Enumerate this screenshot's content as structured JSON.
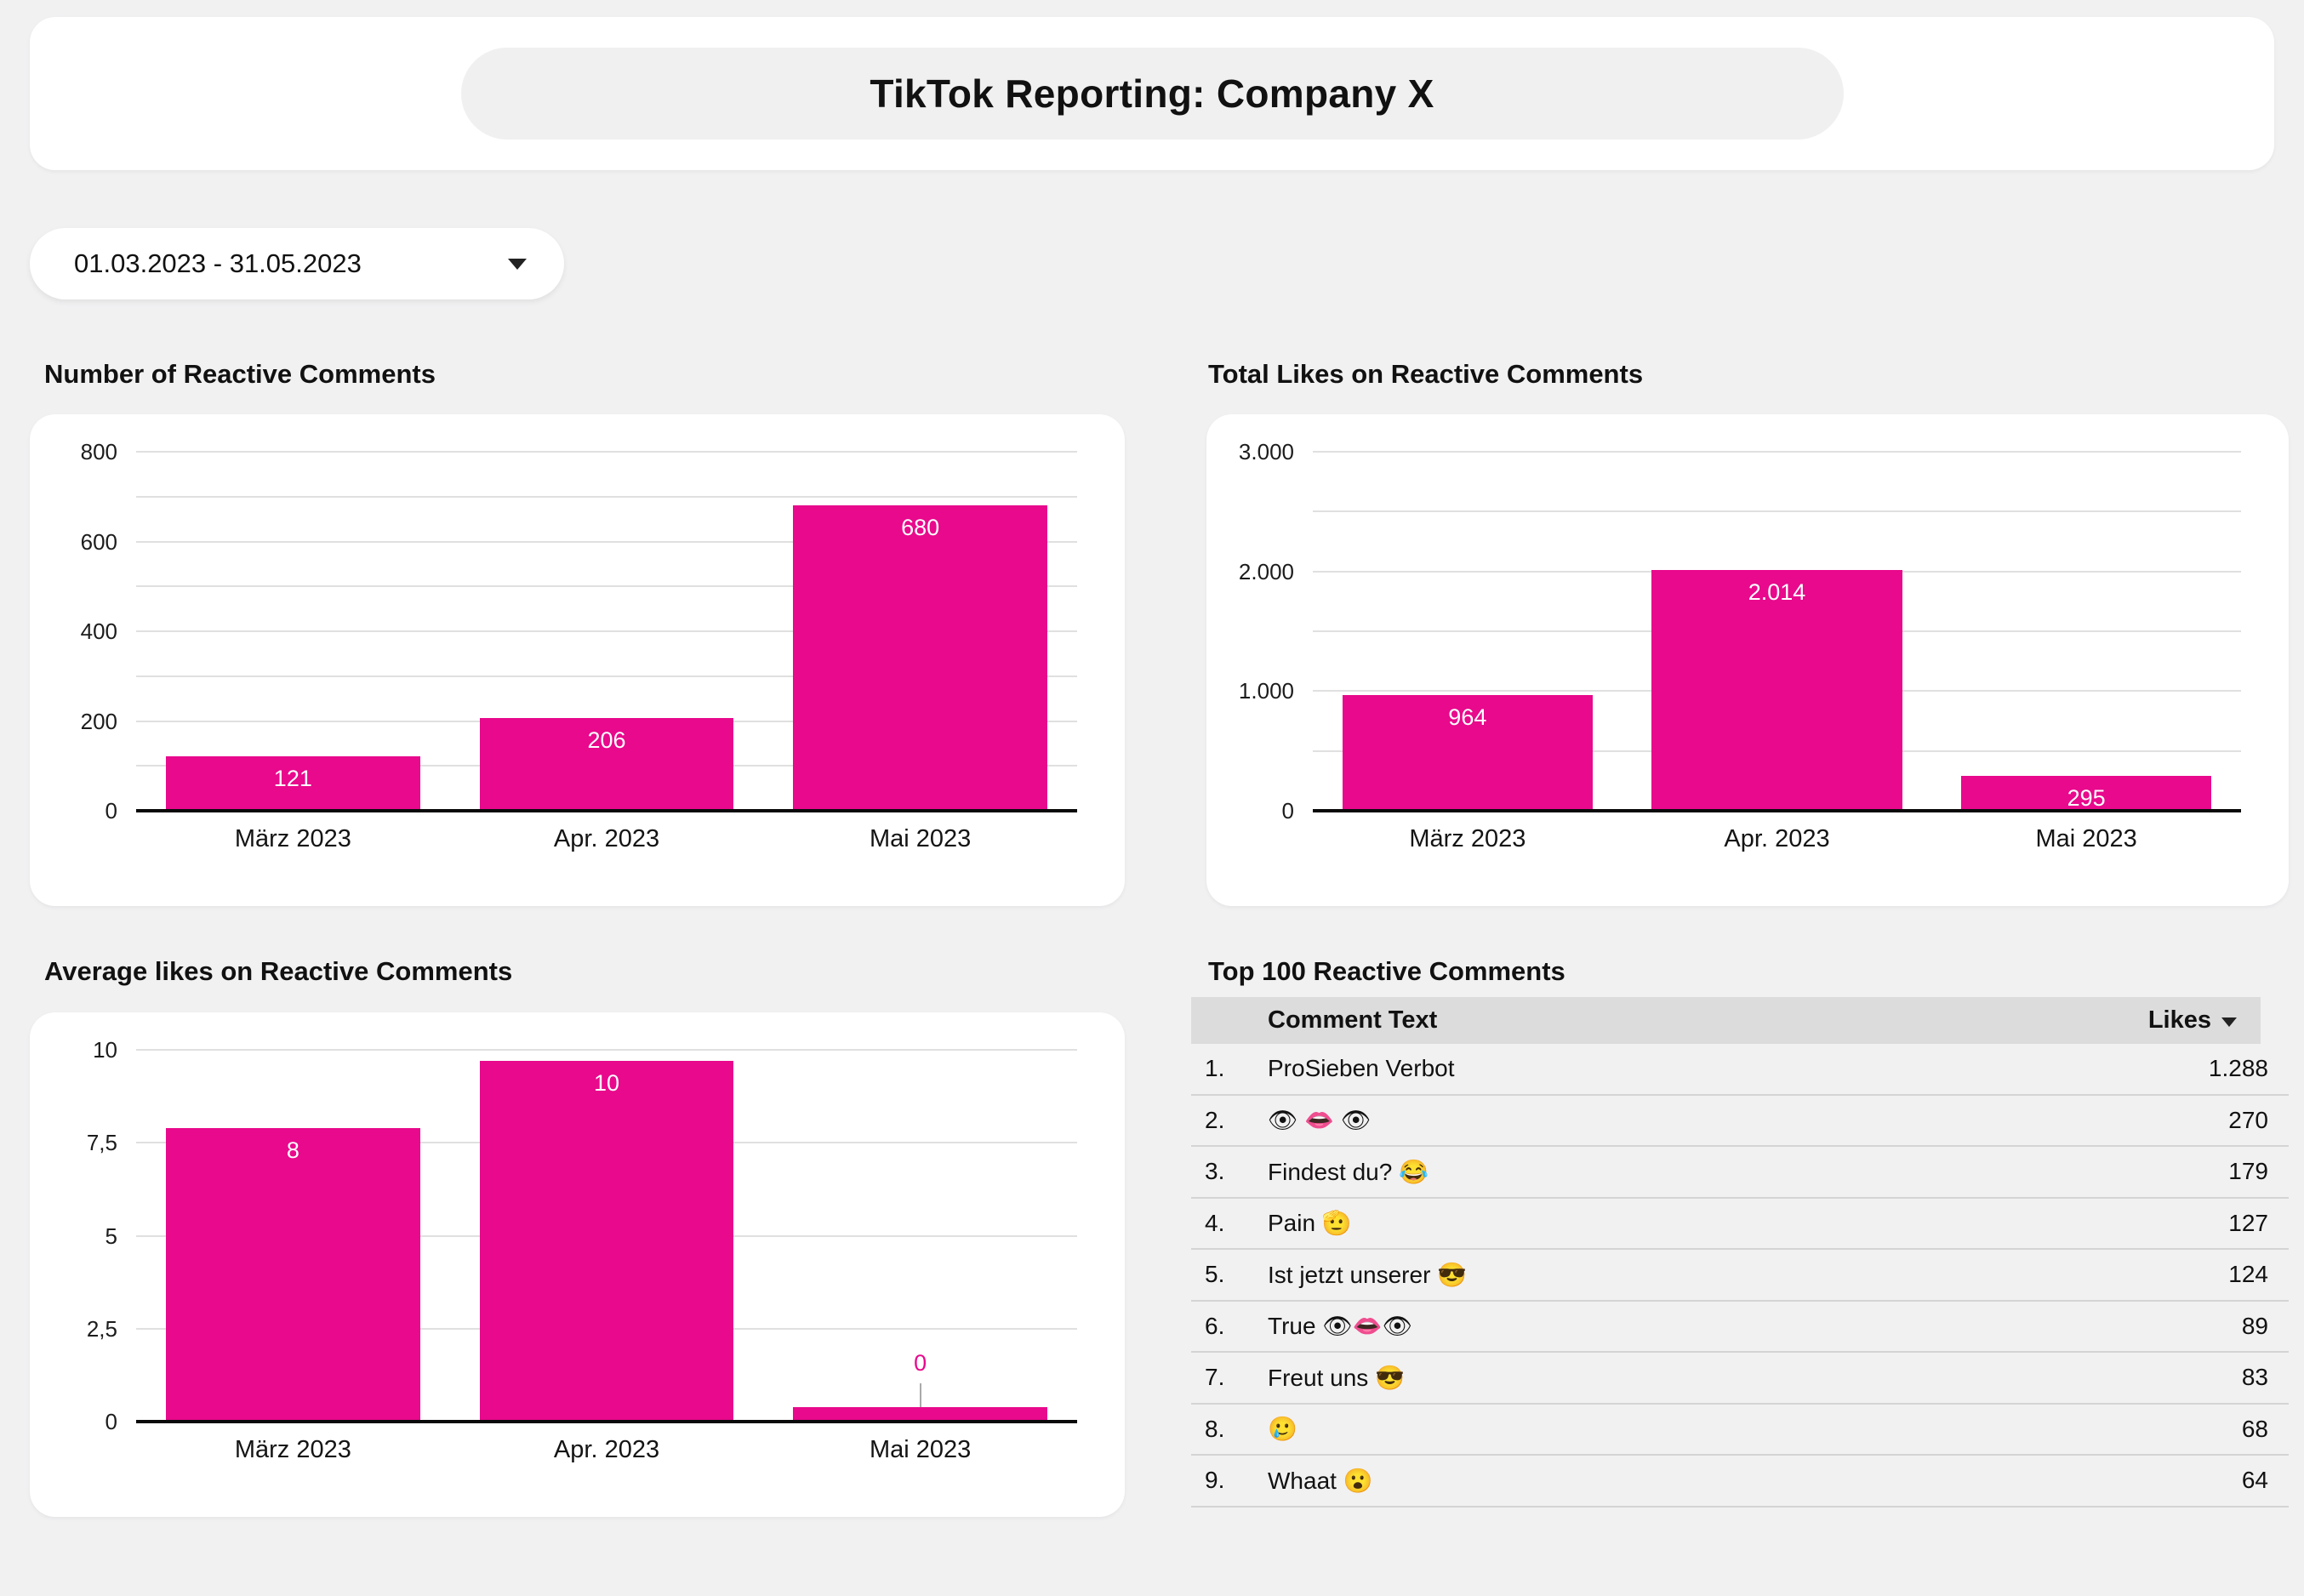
{
  "page": {
    "title": "TikTok Reporting: Company X",
    "date_range_label": "01.03.2023 - 31.05.2023"
  },
  "colors": {
    "accent_pink": "#E8098C",
    "page_background": "#F1F1F2",
    "card_background": "#FFFFFF",
    "table_header_background": "#DCDCDC",
    "gridline": "#E0E0E0",
    "callout_line": "#AAAAAA"
  },
  "chart_data": [
    {
      "id": "number-of-reactive-comments",
      "type": "bar",
      "title": "Number of Reactive Comments",
      "categories": [
        "März 2023",
        "Apr. 2023",
        "Mai 2023"
      ],
      "values": [
        121,
        206,
        680
      ],
      "bar_labels": [
        "121",
        "206",
        "680"
      ],
      "bar_label_style": [
        "inside",
        "inside",
        "inside"
      ],
      "xlabel": "",
      "ylabel": "",
      "ylim": [
        0,
        800
      ],
      "grid": true,
      "legend": "none",
      "yticks": [
        {
          "value": 0,
          "label": "0"
        },
        {
          "value": 100,
          "label": ""
        },
        {
          "value": 200,
          "label": "200"
        },
        {
          "value": 300,
          "label": ""
        },
        {
          "value": 400,
          "label": "400"
        },
        {
          "value": 500,
          "label": ""
        },
        {
          "value": 600,
          "label": "600"
        },
        {
          "value": 700,
          "label": ""
        },
        {
          "value": 800,
          "label": "800"
        }
      ]
    },
    {
      "id": "total-likes-on-reactive-comments",
      "type": "bar",
      "title": "Total Likes on Reactive Comments",
      "categories": [
        "März 2023",
        "Apr. 2023",
        "Mai 2023"
      ],
      "values": [
        964,
        2014,
        295
      ],
      "bar_labels": [
        "964",
        "2.014",
        "295"
      ],
      "bar_label_style": [
        "inside",
        "inside",
        "inside"
      ],
      "xlabel": "",
      "ylabel": "",
      "ylim": [
        0,
        3000
      ],
      "grid": true,
      "legend": "none",
      "yticks": [
        {
          "value": 0,
          "label": "0"
        },
        {
          "value": 500,
          "label": ""
        },
        {
          "value": 1000,
          "label": "1.000"
        },
        {
          "value": 1500,
          "label": ""
        },
        {
          "value": 2000,
          "label": "2.000"
        },
        {
          "value": 2500,
          "label": ""
        },
        {
          "value": 3000,
          "label": "3.000"
        }
      ]
    },
    {
      "id": "average-likes-on-reactive-comments",
      "type": "bar",
      "title": "Average likes on Reactive Comments",
      "categories": [
        "März 2023",
        "Apr. 2023",
        "Mai 2023"
      ],
      "values": [
        7.9,
        9.7,
        0.4
      ],
      "bar_labels": [
        "8",
        "10",
        "0"
      ],
      "bar_label_style": [
        "inside",
        "inside",
        "callout"
      ],
      "xlabel": "",
      "ylabel": "",
      "ylim": [
        0,
        10
      ],
      "grid": true,
      "legend": "none",
      "yticks": [
        {
          "value": 0,
          "label": "0"
        },
        {
          "value": 2.5,
          "label": "2,5"
        },
        {
          "value": 5,
          "label": "5"
        },
        {
          "value": 7.5,
          "label": "7,5"
        },
        {
          "value": 10,
          "label": "10"
        }
      ]
    },
    {
      "id": "top-100-reactive-comments",
      "type": "table",
      "title": "Top 100 Reactive Comments",
      "columns": [
        {
          "key": "rank",
          "label": ""
        },
        {
          "key": "comment",
          "label": "Comment Text"
        },
        {
          "key": "likes",
          "label": "Likes",
          "sorted": "desc"
        }
      ],
      "rows": [
        {
          "rank": "1.",
          "comment": "ProSieben Verbot",
          "likes": "1.288"
        },
        {
          "rank": "2.",
          "comment": "👁 👄 👁",
          "likes": "270"
        },
        {
          "rank": "3.",
          "comment": "Findest du? 😂",
          "likes": "179"
        },
        {
          "rank": "4.",
          "comment": "Pain 🫡",
          "likes": "127"
        },
        {
          "rank": "5.",
          "comment": "Ist jetzt unserer 😎",
          "likes": "124"
        },
        {
          "rank": "6.",
          "comment": "True 👁👄👁",
          "likes": "89"
        },
        {
          "rank": "7.",
          "comment": "Freut uns 😎",
          "likes": "83"
        },
        {
          "rank": "8.",
          "comment": "🥲",
          "likes": "68"
        },
        {
          "rank": "9.",
          "comment": "Whaat 😮",
          "likes": "64"
        }
      ]
    }
  ]
}
